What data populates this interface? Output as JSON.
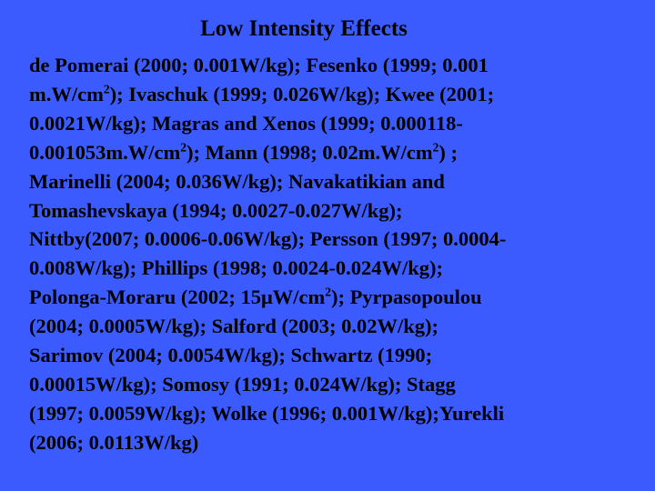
{
  "slide": {
    "title": "Low Intensity Effects",
    "lines": [
      [
        "de Pomerai (2000; 0.001W/kg); Fesenko (1999; 0.001"
      ],
      [
        "m.W/cm",
        "2",
        "); Ivaschuk (1999; 0.026W/kg);  Kwee (2001;"
      ],
      [
        "0.0021W/kg); Magras and Xenos (1999; 0.000118-"
      ],
      [
        "0.001053m.W/cm",
        "2",
        "); Mann (1998; 0.02m.W/cm",
        "2",
        ") ;"
      ],
      [
        "Marinelli (2004; 0.036W/kg); Navakatikian and"
      ],
      [
        "Tomashevskaya (1994; 0.0027-0.027W/kg);"
      ],
      [
        "Nittby(2007; 0.0006-0.06W/kg); Persson (1997; 0.0004-"
      ],
      [
        "0.008W/kg); Phillips (1998; 0.0024-0.024W/kg);"
      ],
      [
        "Polonga-Moraru (2002; 15μW/cm",
        "2",
        "); Pyrpasopoulou"
      ],
      [
        "(2004; 0.0005W/kg); Salford (2003; 0.02W/kg);"
      ],
      [
        "Sarimov (2004; 0.0054W/kg); Schwartz (1990;"
      ],
      [
        "0.00015W/kg); Somosy (1991; 0.024W/kg); Stagg"
      ],
      [
        "(1997; 0.0059W/kg); Wolke (1996; 0.001W/kg);Yurekli"
      ],
      [
        "(2006; 0.0113W/kg)"
      ]
    ]
  },
  "colors": {
    "background": "#3b5bff",
    "text": "#000000"
  }
}
